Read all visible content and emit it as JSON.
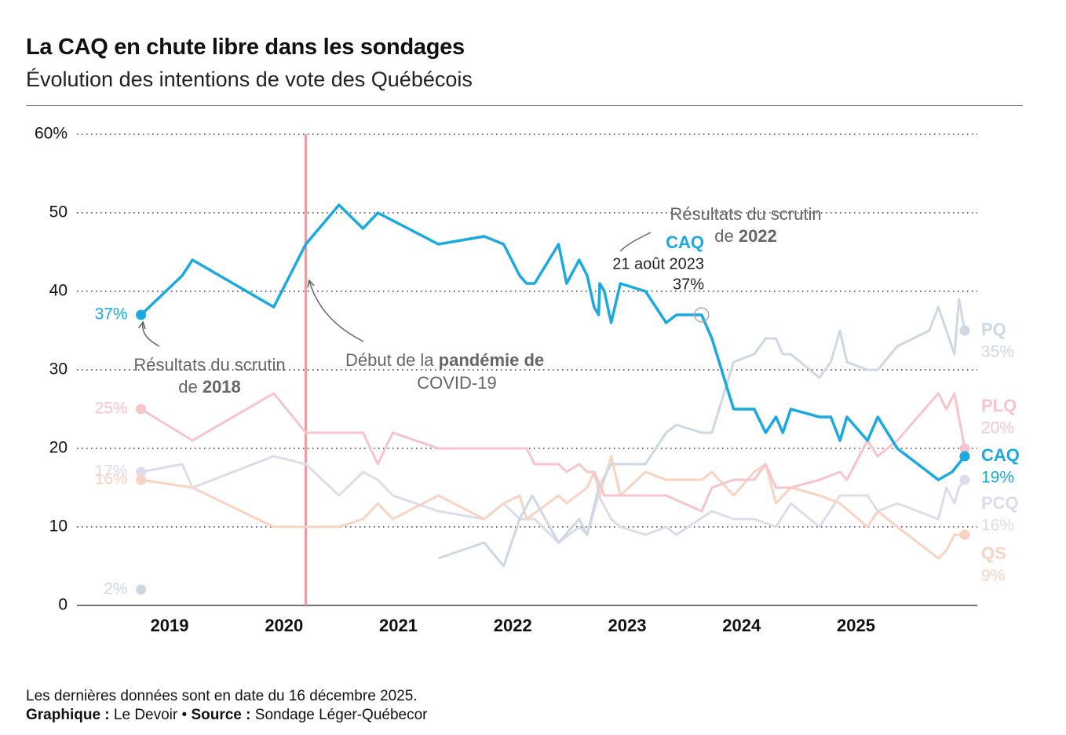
{
  "header": {
    "title": "La CAQ en chute libre dans les sondages",
    "subtitle": "Évolution des intentions de vote des Québécois"
  },
  "chart_data": {
    "type": "line",
    "xlim": [
      2018.19,
      2026.06
    ],
    "xticks": [
      2019,
      2020,
      2021,
      2022,
      2023,
      2024,
      2025
    ],
    "ylim": [
      0,
      60
    ],
    "yticks": [
      0,
      10,
      20,
      30,
      40,
      50,
      {
        "value": 60,
        "label": "60%"
      }
    ],
    "grid": true,
    "series": [
      {
        "name": "CAQ",
        "color": "#1aa9e1",
        "x": [
          2018.75,
          2019.11,
          2019.2,
          2019.91,
          2020.19,
          2020.48,
          2020.69,
          2020.82,
          2021.35,
          2021.75,
          2021.92,
          2022.06,
          2022.12,
          2022.19,
          2022.4,
          2022.47,
          2022.58,
          2022.65,
          2022.71,
          2022.75,
          2022.76,
          2022.8,
          2022.86,
          2022.94,
          2023.16,
          2023.34,
          2023.43,
          2023.65,
          2023.74,
          2023.93,
          2024.11,
          2024.21,
          2024.3,
          2024.36,
          2024.43,
          2024.68,
          2024.78,
          2024.86,
          2024.92,
          2025.1,
          2025.19,
          2025.36,
          2025.72,
          2025.84,
          2025.95
        ],
        "values": [
          37,
          42,
          44,
          38,
          46,
          51,
          48,
          50,
          46,
          47,
          46,
          42,
          41,
          41,
          46,
          41,
          44,
          42,
          38,
          37,
          41,
          40,
          36,
          41,
          40,
          36,
          37,
          37,
          34,
          25,
          25,
          22,
          24,
          22,
          25,
          24,
          24,
          21,
          24,
          21,
          24,
          20,
          16,
          17,
          19
        ],
        "value_labels": {
          "0": "37%",
          "44": "19%"
        }
      },
      {
        "name": "PQ",
        "color": "#cdd8e3",
        "x": [
          2018.75,
          2021.0,
          2021.35,
          2021.75,
          2021.92,
          2022.06,
          2022.17,
          2022.4,
          2022.58,
          2022.65,
          2022.75,
          2022.86,
          2023.16,
          2023.34,
          2023.43,
          2023.65,
          2023.74,
          2023.93,
          2024.11,
          2024.21,
          2024.3,
          2024.36,
          2024.43,
          2024.68,
          2024.78,
          2024.86,
          2024.92,
          2025.1,
          2025.19,
          2025.36,
          2025.64,
          2025.72,
          2025.79,
          2025.86,
          2025.9,
          2025.95
        ],
        "values": [
          2,
          null,
          6,
          8,
          5,
          11,
          14,
          8,
          11,
          9,
          15,
          18,
          18,
          22,
          23,
          22,
          22,
          31,
          32,
          34,
          34,
          32,
          32,
          29,
          31,
          35,
          31,
          30,
          30,
          33,
          35,
          38,
          35,
          32,
          39,
          35
        ],
        "value_labels": {
          "0": "2%",
          "35": "35%"
        }
      },
      {
        "name": "PLQ",
        "color": "#f7c4cb",
        "x": [
          2018.75,
          2019.2,
          2019.91,
          2020.19,
          2020.48,
          2020.69,
          2020.82,
          2020.95,
          2021.35,
          2021.75,
          2021.92,
          2022.12,
          2022.19,
          2022.4,
          2022.47,
          2022.58,
          2022.65,
          2022.71,
          2022.8,
          2022.94,
          2023.16,
          2023.34,
          2023.65,
          2023.74,
          2023.93,
          2024.11,
          2024.21,
          2024.3,
          2024.43,
          2024.68,
          2024.86,
          2024.92,
          2025.1,
          2025.19,
          2025.36,
          2025.72,
          2025.79,
          2025.86,
          2025.95
        ],
        "values": [
          25,
          21,
          27,
          22,
          22,
          22,
          18,
          22,
          20,
          20,
          20,
          20,
          18,
          18,
          17,
          18,
          17,
          17,
          14,
          14,
          14,
          14,
          12,
          15,
          16,
          16,
          18,
          15,
          15,
          16,
          17,
          16,
          21,
          19,
          21,
          27,
          25,
          27,
          20
        ],
        "value_labels": {
          "0": "25%",
          "38": "20%"
        }
      },
      {
        "name": "QS",
        "color": "#f8d3c2",
        "x": [
          2018.75,
          2019.2,
          2019.91,
          2020.48,
          2020.69,
          2020.82,
          2020.95,
          2021.35,
          2021.75,
          2021.92,
          2022.06,
          2022.12,
          2022.4,
          2022.47,
          2022.65,
          2022.71,
          2022.76,
          2022.86,
          2022.94,
          2023.16,
          2023.34,
          2023.65,
          2023.74,
          2023.93,
          2024.11,
          2024.21,
          2024.3,
          2024.43,
          2024.68,
          2024.86,
          2025.1,
          2025.19,
          2025.36,
          2025.72,
          2025.79,
          2025.86,
          2025.95
        ],
        "values": [
          16,
          15,
          10,
          10,
          11,
          13,
          11,
          14,
          11,
          13,
          14,
          11,
          14,
          13,
          15,
          17,
          14,
          19,
          14,
          17,
          16,
          16,
          17,
          14,
          17,
          18,
          13,
          15,
          14,
          13,
          10,
          12,
          10,
          6,
          7,
          9,
          9
        ],
        "value_labels": {
          "0": "16%",
          "36": "9%"
        }
      },
      {
        "name": "PCQ",
        "color": "#dcdcea",
        "x": [
          2018.75,
          2019.11,
          2019.2,
          2019.91,
          2020.19,
          2020.48,
          2020.69,
          2020.82,
          2020.95,
          2021.35,
          2021.75,
          2021.92,
          2022.06,
          2022.19,
          2022.4,
          2022.58,
          2022.65,
          2022.75,
          2022.86,
          2022.94,
          2023.16,
          2023.34,
          2023.43,
          2023.74,
          2023.93,
          2024.11,
          2024.3,
          2024.43,
          2024.68,
          2024.86,
          2025.1,
          2025.19,
          2025.36,
          2025.72,
          2025.79,
          2025.86,
          2025.9,
          2025.95
        ],
        "values": [
          17,
          18,
          15,
          19,
          18,
          14,
          17,
          16,
          14,
          12,
          11,
          13,
          11,
          11,
          8,
          10,
          9,
          14,
          11,
          10,
          9,
          10,
          9,
          12,
          11,
          11,
          10,
          13,
          10,
          14,
          14,
          12,
          13,
          11,
          15,
          13,
          15,
          16
        ],
        "value_labels": {
          "0": "17%",
          "37": "16%"
        }
      }
    ],
    "reference_line": {
      "x": 2020.19,
      "color": "#f29aa4"
    },
    "highlight": {
      "x": 2023.65,
      "y": 37
    },
    "annotations": [
      {
        "line1": "Résultats du scrutin",
        "line2": "de",
        "line2_bold": "2018"
      },
      {
        "line1": "Début de la",
        "line1_bold": "pandémie de",
        "line2_bold": "COVID-19"
      },
      {
        "line1": "Résultats du scrutin",
        "line2": "de",
        "line2_bold": "2022"
      },
      {
        "name": "CAQ",
        "date": "21 août 2023",
        "label": "37%"
      }
    ]
  },
  "footer": {
    "note": "Les dernières données sont en date du 16 décembre 2025.",
    "graphic_label": "Graphique :",
    "graphic": "Le Devoir",
    "separator": "•",
    "source_label": "Source :",
    "source": "Sondage Léger-Québecor"
  }
}
